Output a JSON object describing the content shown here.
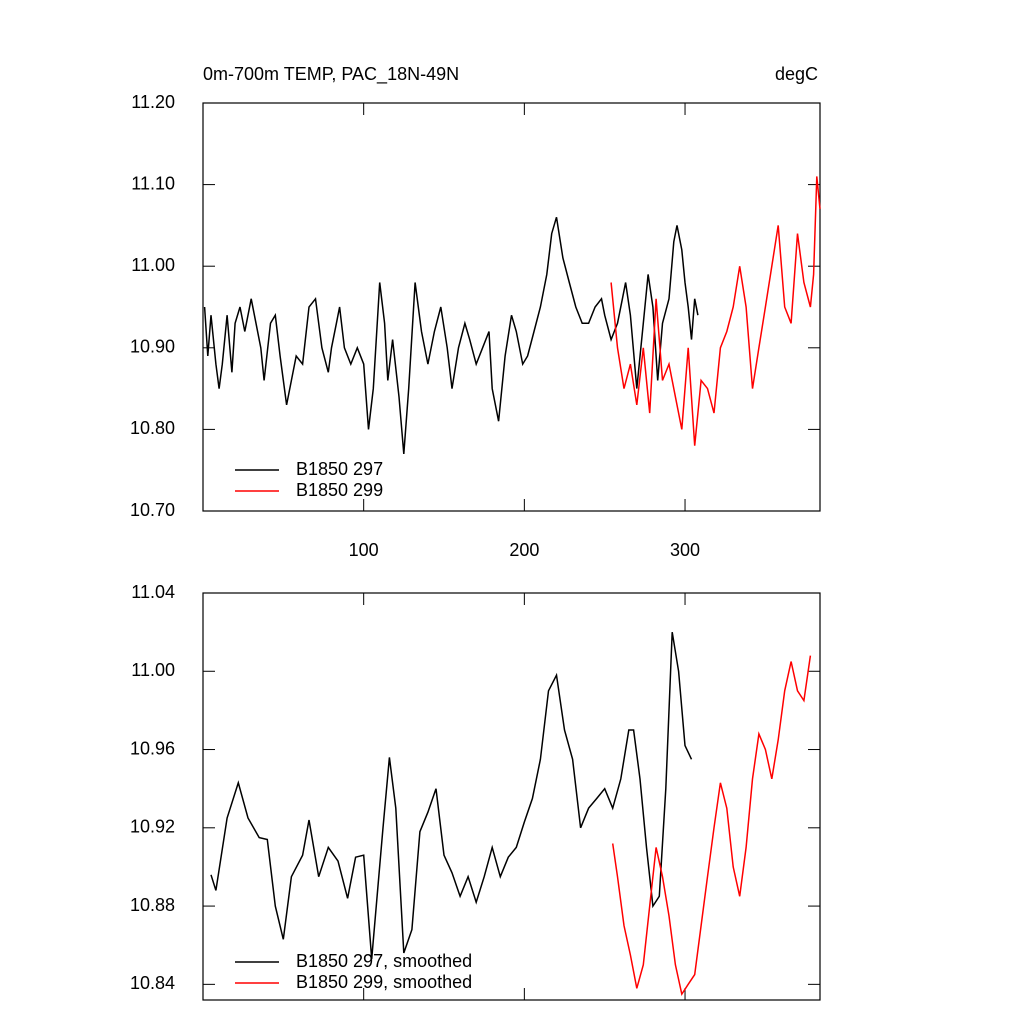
{
  "chart_data": [
    {
      "type": "line",
      "title": "0m-700m TEMP, PAC_18N-49N",
      "units": "degC",
      "xlim": [
        0,
        384
      ],
      "xticks": [
        100,
        200,
        300
      ],
      "ylim": [
        10.7,
        11.2
      ],
      "yticks": [
        {
          "value": 10.7,
          "label": "10.70"
        },
        {
          "value": 10.8,
          "label": "10.80"
        },
        {
          "value": 10.9,
          "label": "10.90"
        },
        {
          "value": 11.0,
          "label": "11.00"
        },
        {
          "value": 11.1,
          "label": "11.10"
        },
        {
          "value": 11.2,
          "label": "11.20"
        }
      ],
      "legend": "lower left",
      "series": [
        {
          "name": "B1850 297",
          "color": "#000000",
          "x": [
            1,
            3,
            5,
            8,
            10,
            12,
            15,
            18,
            20,
            23,
            26,
            30,
            33,
            36,
            38,
            42,
            45,
            48,
            52,
            55,
            58,
            62,
            66,
            70,
            74,
            78,
            80,
            83,
            85,
            88,
            92,
            96,
            100,
            103,
            106,
            110,
            113,
            115,
            118,
            122,
            125,
            128,
            132,
            136,
            140,
            144,
            148,
            152,
            155,
            159,
            163,
            166,
            170,
            174,
            178,
            180,
            184,
            188,
            192,
            195,
            199,
            202,
            206,
            210,
            214,
            217,
            220,
            224,
            228,
            232,
            236,
            240,
            244,
            248,
            250,
            254,
            258,
            261,
            263,
            266,
            270,
            274,
            277,
            280,
            283,
            286,
            290,
            293,
            295,
            298,
            300,
            302,
            304,
            306,
            308
          ],
          "values": [
            10.95,
            10.89,
            10.94,
            10.88,
            10.85,
            10.88,
            10.94,
            10.87,
            10.93,
            10.95,
            10.92,
            10.96,
            10.93,
            10.9,
            10.86,
            10.93,
            10.94,
            10.89,
            10.83,
            10.86,
            10.89,
            10.88,
            10.95,
            10.96,
            10.9,
            10.87,
            10.9,
            10.93,
            10.95,
            10.9,
            10.88,
            10.9,
            10.88,
            10.8,
            10.85,
            10.98,
            10.93,
            10.86,
            10.91,
            10.84,
            10.77,
            10.85,
            10.98,
            10.92,
            10.88,
            10.92,
            10.95,
            10.9,
            10.85,
            10.9,
            10.93,
            10.91,
            10.88,
            10.9,
            10.92,
            10.85,
            10.81,
            10.89,
            10.94,
            10.92,
            10.88,
            10.89,
            10.92,
            10.95,
            10.99,
            11.04,
            11.06,
            11.01,
            10.98,
            10.95,
            10.93,
            10.93,
            10.95,
            10.96,
            10.94,
            10.91,
            10.93,
            10.96,
            10.98,
            10.94,
            10.85,
            10.93,
            10.99,
            10.95,
            10.86,
            10.93,
            10.96,
            11.03,
            11.05,
            11.02,
            10.98,
            10.95,
            10.91,
            10.96,
            10.94
          ]
        },
        {
          "name": "B1850 299",
          "color": "#ff0000",
          "x": [
            254,
            258,
            262,
            266,
            270,
            274,
            278,
            282,
            286,
            290,
            294,
            298,
            302,
            306,
            310,
            314,
            318,
            322,
            326,
            330,
            334,
            338,
            342,
            346,
            350,
            354,
            358,
            362,
            366,
            370,
            374,
            378,
            380,
            382,
            384
          ],
          "values": [
            10.98,
            10.9,
            10.85,
            10.88,
            10.83,
            10.9,
            10.82,
            10.96,
            10.86,
            10.88,
            10.84,
            10.8,
            10.9,
            10.78,
            10.86,
            10.85,
            10.82,
            10.9,
            10.92,
            10.95,
            11.0,
            10.95,
            10.85,
            10.9,
            10.95,
            11.0,
            11.05,
            10.95,
            10.93,
            11.04,
            10.98,
            10.95,
            10.99,
            11.11,
            11.07
          ]
        }
      ]
    },
    {
      "type": "line",
      "xlim": [
        0,
        384
      ],
      "xticks": [
        100,
        200,
        300
      ],
      "ylim": [
        10.832,
        11.04
      ],
      "yticks": [
        {
          "value": 10.84,
          "label": "10.84"
        },
        {
          "value": 10.88,
          "label": "10.88"
        },
        {
          "value": 10.92,
          "label": "10.92"
        },
        {
          "value": 10.96,
          "label": "10.96"
        },
        {
          "value": 11.0,
          "label": "11.00"
        },
        {
          "value": 11.04,
          "label": "11.04"
        }
      ],
      "legend": "lower left",
      "series": [
        {
          "name": "B1850 297, smoothed",
          "color": "#000000",
          "x": [
            5,
            8,
            15,
            22,
            28,
            35,
            40,
            45,
            50,
            55,
            62,
            66,
            72,
            78,
            84,
            90,
            95,
            100,
            105,
            112,
            116,
            120,
            125,
            130,
            135,
            140,
            145,
            150,
            155,
            160,
            165,
            170,
            175,
            180,
            185,
            190,
            195,
            200,
            205,
            210,
            215,
            220,
            225,
            230,
            235,
            240,
            245,
            250,
            255,
            260,
            265,
            268,
            272,
            276,
            280,
            284,
            288,
            292,
            296,
            300,
            304
          ],
          "values": [
            10.896,
            10.888,
            10.925,
            10.943,
            10.925,
            10.915,
            10.914,
            10.88,
            10.863,
            10.895,
            10.906,
            10.924,
            10.895,
            10.91,
            10.903,
            10.884,
            10.905,
            10.906,
            10.853,
            10.92,
            10.956,
            10.93,
            10.856,
            10.868,
            10.918,
            10.928,
            10.94,
            10.906,
            10.897,
            10.885,
            10.895,
            10.882,
            10.895,
            10.91,
            10.895,
            10.905,
            10.91,
            10.923,
            10.935,
            10.955,
            10.99,
            10.998,
            10.97,
            10.955,
            10.92,
            10.93,
            10.935,
            10.94,
            10.93,
            10.945,
            10.97,
            10.97,
            10.945,
            10.91,
            10.88,
            10.885,
            10.94,
            11.02,
            11.0,
            10.962,
            10.955
          ]
        },
        {
          "name": "B1850 299, smoothed",
          "color": "#ff0000",
          "x": [
            255,
            258,
            262,
            266,
            270,
            274,
            278,
            282,
            286,
            290,
            294,
            298,
            302,
            306,
            310,
            314,
            318,
            322,
            326,
            330,
            334,
            338,
            342,
            346,
            350,
            354,
            358,
            362,
            366,
            370,
            374,
            378
          ],
          "values": [
            10.912,
            10.895,
            10.87,
            10.855,
            10.838,
            10.85,
            10.88,
            10.91,
            10.895,
            10.875,
            10.85,
            10.835,
            10.84,
            10.845,
            10.87,
            10.895,
            10.92,
            10.943,
            10.93,
            10.9,
            10.885,
            10.91,
            10.945,
            10.968,
            10.96,
            10.945,
            10.965,
            10.99,
            11.005,
            10.99,
            10.985,
            11.008
          ]
        }
      ]
    }
  ]
}
